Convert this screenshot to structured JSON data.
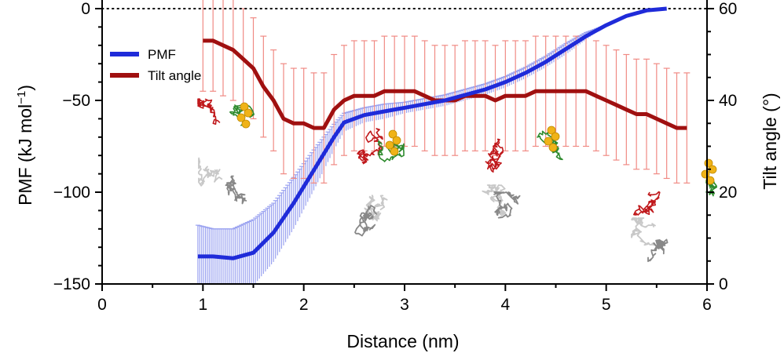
{
  "chart_data": {
    "type": "line",
    "xlabel": "Distance (nm)",
    "ylabel_left": "PMF (kJ mol−1)",
    "ylabel_right": "Tilt angle (°)",
    "xlim": [
      0,
      6
    ],
    "ylim_left": [
      -150,
      0
    ],
    "ylim_right": [
      0,
      60
    ],
    "x_ticks": [
      0,
      1,
      2,
      3,
      4,
      5,
      6
    ],
    "y_left_ticks": [
      0,
      -50,
      -100,
      -150
    ],
    "y_left_tick_labels": [
      "0",
      "−50",
      "−100",
      "−150"
    ],
    "y_right_ticks": [
      0,
      20,
      40,
      60
    ],
    "reference_line": {
      "axis": "left",
      "y": 0,
      "style": "dotted"
    },
    "legend": {
      "position": "top-left",
      "entries": [
        "PMF",
        "Tilt angle"
      ]
    },
    "colors": {
      "pmf": "#1f2bd9",
      "pmf_error": "#9aa2f0",
      "tilt": "#a01010",
      "tilt_error": "#f08a84"
    },
    "series": [
      {
        "name": "PMF",
        "axis": "left",
        "x": [
          0.95,
          1.1,
          1.3,
          1.5,
          1.7,
          1.9,
          2.1,
          2.3,
          2.4,
          2.6,
          2.8,
          3.0,
          3.2,
          3.4,
          3.6,
          3.8,
          4.0,
          4.2,
          4.4,
          4.6,
          4.8,
          5.0,
          5.2,
          5.4,
          5.6
        ],
        "y": [
          -135,
          -135,
          -136,
          -133,
          -122,
          -106,
          -88,
          -70,
          -62,
          -58,
          -56,
          -54,
          -52,
          -50,
          -47,
          -44,
          -40,
          -35,
          -29,
          -22,
          -15,
          -9,
          -4,
          -1,
          0
        ],
        "error": [
          17,
          15,
          16,
          18,
          16,
          14,
          11,
          7,
          5,
          4,
          4,
          3,
          3,
          3,
          3,
          3,
          3,
          3,
          3,
          3,
          2,
          0,
          0,
          0,
          0
        ]
      },
      {
        "name": "Tilt angle",
        "axis": "right",
        "x": [
          1.0,
          1.1,
          1.2,
          1.3,
          1.4,
          1.5,
          1.6,
          1.7,
          1.8,
          1.9,
          2.0,
          2.1,
          2.2,
          2.3,
          2.4,
          2.5,
          2.6,
          2.7,
          2.8,
          2.9,
          3.0,
          3.1,
          3.2,
          3.3,
          3.4,
          3.5,
          3.6,
          3.7,
          3.8,
          3.9,
          4.0,
          4.1,
          4.2,
          4.3,
          4.4,
          4.5,
          4.6,
          4.7,
          4.8,
          4.9,
          5.0,
          5.1,
          5.2,
          5.3,
          5.4,
          5.5,
          5.6,
          5.7,
          5.8
        ],
        "y": [
          53,
          53,
          52,
          51,
          49,
          47,
          43,
          40,
          36,
          35,
          35,
          34,
          34,
          38,
          40,
          41,
          41,
          41,
          42,
          42,
          42,
          42,
          41,
          40,
          40,
          40,
          41,
          41,
          41,
          40,
          41,
          41,
          41,
          42,
          42,
          42,
          42,
          42,
          42,
          41,
          40,
          39,
          38,
          37,
          37,
          36,
          35,
          34,
          34
        ],
        "error": [
          11,
          11,
          11,
          11,
          11,
          11,
          11,
          11,
          12,
          12,
          12,
          12,
          12,
          12,
          12,
          12,
          12,
          12,
          12,
          12,
          12,
          12,
          12,
          12,
          12,
          12,
          12,
          12,
          12,
          12,
          12,
          12,
          12,
          12,
          12,
          12,
          12,
          12,
          12,
          12,
          12,
          12,
          12,
          12,
          12,
          12,
          12,
          12,
          12
        ]
      }
    ]
  }
}
